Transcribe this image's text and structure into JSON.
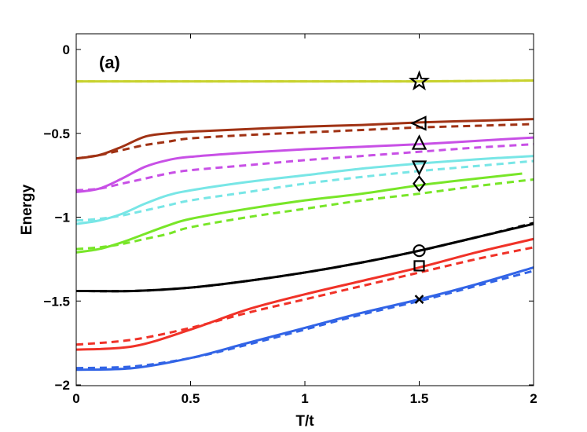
{
  "chart_data": {
    "type": "line",
    "panel_label": "(a)",
    "xlabel": "T/t",
    "ylabel": "Energy",
    "xlim": [
      0,
      2
    ],
    "ylim": [
      -2,
      0.1
    ],
    "xticks": [
      0,
      0.5,
      1,
      1.5,
      2
    ],
    "xtick_labels": [
      "0",
      "0.5",
      "1",
      "1.5",
      "2"
    ],
    "yticks": [
      0,
      -0.5,
      -1,
      -1.5,
      -2
    ],
    "ytick_labels": [
      "0",
      "−0.5",
      "−1",
      "−1.5",
      "−2"
    ],
    "grid": false,
    "series": [
      {
        "name": "yellow-green solid",
        "color": "#c8d22e",
        "style": "solid",
        "x": [
          0,
          0.5,
          1,
          1.5,
          2
        ],
        "y": [
          -0.19,
          -0.19,
          -0.19,
          -0.19,
          -0.185
        ]
      },
      {
        "name": "yellow-green dashed",
        "color": "#c8d22e",
        "style": "dashed",
        "x": [
          0,
          0.5,
          1,
          1.5,
          2
        ],
        "y": [
          -0.19,
          -0.19,
          -0.19,
          -0.19,
          -0.185
        ]
      },
      {
        "name": "brown solid",
        "color": "#a03214",
        "style": "solid",
        "x": [
          0,
          0.1,
          0.2,
          0.3,
          0.4,
          0.5,
          0.75,
          1,
          1.25,
          1.5,
          1.75,
          2
        ],
        "y": [
          -0.65,
          -0.63,
          -0.58,
          -0.52,
          -0.5,
          -0.49,
          -0.475,
          -0.46,
          -0.45,
          -0.435,
          -0.425,
          -0.415
        ]
      },
      {
        "name": "brown dashed",
        "color": "#a03214",
        "style": "dashed",
        "x": [
          0,
          0.1,
          0.2,
          0.3,
          0.4,
          0.5,
          0.75,
          1,
          1.25,
          1.5,
          1.75,
          2
        ],
        "y": [
          -0.65,
          -0.63,
          -0.6,
          -0.57,
          -0.55,
          -0.53,
          -0.51,
          -0.495,
          -0.48,
          -0.465,
          -0.455,
          -0.445
        ]
      },
      {
        "name": "magenta solid",
        "color": "#c850e6",
        "style": "solid",
        "x": [
          0,
          0.1,
          0.2,
          0.3,
          0.4,
          0.5,
          0.75,
          1,
          1.25,
          1.5,
          1.75,
          2
        ],
        "y": [
          -0.85,
          -0.83,
          -0.77,
          -0.7,
          -0.66,
          -0.64,
          -0.615,
          -0.595,
          -0.58,
          -0.565,
          -0.545,
          -0.525
        ]
      },
      {
        "name": "magenta dashed",
        "color": "#c850e6",
        "style": "dashed",
        "x": [
          0,
          0.1,
          0.2,
          0.3,
          0.4,
          0.5,
          0.75,
          1,
          1.25,
          1.5,
          1.75,
          2
        ],
        "y": [
          -0.84,
          -0.83,
          -0.8,
          -0.77,
          -0.74,
          -0.72,
          -0.69,
          -0.66,
          -0.635,
          -0.61,
          -0.585,
          -0.565
        ]
      },
      {
        "name": "cyan solid",
        "color": "#78e6e6",
        "style": "solid",
        "x": [
          0,
          0.1,
          0.2,
          0.3,
          0.4,
          0.5,
          0.75,
          1,
          1.25,
          1.5,
          1.75,
          2
        ],
        "y": [
          -1.04,
          -1.02,
          -0.98,
          -0.92,
          -0.87,
          -0.84,
          -0.79,
          -0.75,
          -0.71,
          -0.68,
          -0.655,
          -0.635
        ]
      },
      {
        "name": "cyan dashed",
        "color": "#78e6e6",
        "style": "dashed",
        "x": [
          0,
          0.1,
          0.2,
          0.3,
          0.4,
          0.5,
          0.75,
          1,
          1.25,
          1.5,
          1.75,
          2
        ],
        "y": [
          -1.02,
          -1.01,
          -0.99,
          -0.96,
          -0.93,
          -0.9,
          -0.85,
          -0.8,
          -0.76,
          -0.725,
          -0.695,
          -0.665
        ]
      },
      {
        "name": "green solid",
        "color": "#78e628",
        "style": "solid",
        "x": [
          0,
          0.1,
          0.2,
          0.3,
          0.4,
          0.5,
          0.75,
          1,
          1.25,
          1.5,
          1.75,
          1.95
        ],
        "y": [
          -1.21,
          -1.19,
          -1.15,
          -1.1,
          -1.05,
          -1.01,
          -0.95,
          -0.9,
          -0.86,
          -0.81,
          -0.77,
          -0.74
        ]
      },
      {
        "name": "green dashed",
        "color": "#78e628",
        "style": "dashed",
        "x": [
          0,
          0.1,
          0.2,
          0.3,
          0.4,
          0.5,
          0.75,
          1,
          1.25,
          1.5,
          1.75,
          2
        ],
        "y": [
          -1.19,
          -1.18,
          -1.16,
          -1.13,
          -1.1,
          -1.06,
          -1.0,
          -0.95,
          -0.9,
          -0.86,
          -0.815,
          -0.775
        ]
      },
      {
        "name": "black solid",
        "color": "#000000",
        "style": "solid",
        "x": [
          0,
          0.25,
          0.5,
          0.75,
          1,
          1.25,
          1.5,
          1.75,
          2
        ],
        "y": [
          -1.44,
          -1.44,
          -1.42,
          -1.38,
          -1.33,
          -1.27,
          -1.2,
          -1.12,
          -1.04
        ]
      },
      {
        "name": "black dashed",
        "color": "#000000",
        "style": "dashed",
        "x": [
          0,
          0.25,
          0.5,
          0.75,
          1,
          1.25,
          1.5,
          1.75,
          2
        ],
        "y": [
          -1.44,
          -1.44,
          -1.42,
          -1.38,
          -1.33,
          -1.27,
          -1.2,
          -1.12,
          -1.035
        ]
      },
      {
        "name": "red solid",
        "color": "#f03228",
        "style": "solid",
        "x": [
          0,
          0.25,
          0.5,
          0.75,
          1,
          1.25,
          1.5,
          1.75,
          2
        ],
        "y": [
          -1.79,
          -1.77,
          -1.67,
          -1.55,
          -1.46,
          -1.38,
          -1.3,
          -1.21,
          -1.13
        ]
      },
      {
        "name": "red dashed",
        "color": "#f03228",
        "style": "dashed",
        "x": [
          0,
          0.25,
          0.5,
          0.75,
          1,
          1.25,
          1.5,
          1.75,
          2
        ],
        "y": [
          -1.76,
          -1.73,
          -1.66,
          -1.57,
          -1.49,
          -1.41,
          -1.33,
          -1.25,
          -1.18
        ]
      },
      {
        "name": "blue solid",
        "color": "#3264e6",
        "style": "solid",
        "x": [
          0,
          0.25,
          0.5,
          0.75,
          1,
          1.25,
          1.5,
          1.75,
          2
        ],
        "y": [
          -1.91,
          -1.9,
          -1.84,
          -1.75,
          -1.66,
          -1.57,
          -1.49,
          -1.4,
          -1.3
        ]
      },
      {
        "name": "blue dashed",
        "color": "#3264e6",
        "style": "dashed",
        "x": [
          0,
          0.25,
          0.5,
          0.75,
          1,
          1.25,
          1.5,
          1.75,
          2
        ],
        "y": [
          -1.9,
          -1.89,
          -1.84,
          -1.76,
          -1.67,
          -1.58,
          -1.5,
          -1.41,
          -1.32
        ]
      }
    ],
    "markers": [
      {
        "symbol": "star",
        "x": 1.5,
        "y": -0.19
      },
      {
        "symbol": "triangle-left",
        "x": 1.5,
        "y": -0.44
      },
      {
        "symbol": "triangle-up",
        "x": 1.5,
        "y": -0.56
      },
      {
        "symbol": "triangle-down",
        "x": 1.5,
        "y": -0.7
      },
      {
        "symbol": "diamond",
        "x": 1.5,
        "y": -0.8
      },
      {
        "symbol": "circle",
        "x": 1.5,
        "y": -1.2
      },
      {
        "symbol": "square",
        "x": 1.5,
        "y": -1.29
      },
      {
        "symbol": "x",
        "x": 1.5,
        "y": -1.49
      }
    ]
  }
}
